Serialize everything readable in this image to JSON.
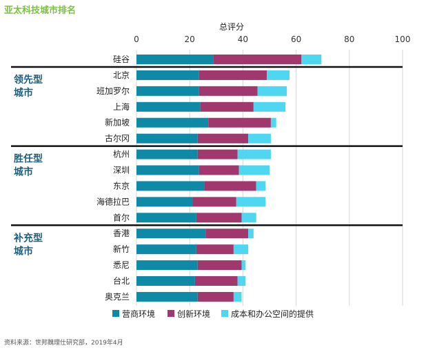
{
  "title": "亚太科技城市排名",
  "source": "资料来源：世邦魏理仕研究部，2019年4月",
  "colors": {
    "title": "#7cc242",
    "series": [
      "#0e8aa6",
      "#a1386d",
      "#4fd7f2"
    ],
    "divider": "#111111",
    "grid": "#d7d7d7",
    "group_label": "#1f5f7a"
  },
  "chart_data": {
    "type": "bar",
    "orientation": "horizontal",
    "stacked": true,
    "xlabel": "总评分",
    "xlim": [
      0,
      100
    ],
    "x_ticks": [
      0,
      20,
      40,
      60,
      80,
      100
    ],
    "grid": "vertical",
    "legend_position": "bottom",
    "categories": [
      "硅谷",
      "北京",
      "班加罗尔",
      "上海",
      "新加坡",
      "古尔冈",
      "杭州",
      "深圳",
      "东京",
      "海德拉巴",
      "首尔",
      "香港",
      "新竹",
      "悉尼",
      "台北",
      "奥克兰"
    ],
    "groups": [
      {
        "label_lines": [
          "领先型",
          "城市"
        ],
        "categories": [
          "北京",
          "班加罗尔",
          "上海",
          "新加坡",
          "古尔冈"
        ]
      },
      {
        "label_lines": [
          "胜任型",
          "城市"
        ],
        "categories": [
          "杭州",
          "深圳",
          "东京",
          "海德拉巴",
          "首尔"
        ]
      },
      {
        "label_lines": [
          "补充型",
          "城市"
        ],
        "categories": [
          "香港",
          "新竹",
          "悉尼",
          "台北",
          "奥克兰"
        ]
      }
    ],
    "series": [
      {
        "name": "营商环境",
        "values": [
          29,
          23.5,
          23.5,
          24,
          27,
          23,
          23,
          23.5,
          25.5,
          21,
          22.5,
          26,
          22.5,
          23,
          22,
          23
        ]
      },
      {
        "name": "创新环境",
        "values": [
          33,
          25.5,
          22,
          20,
          23.5,
          19,
          15,
          15,
          19.5,
          16.5,
          17,
          16,
          14,
          16.5,
          16,
          13.5
        ]
      },
      {
        "name": "成本和办公空间的提供",
        "values": [
          7.5,
          8.5,
          11,
          12,
          2,
          8.5,
          12.5,
          11.5,
          3.5,
          11,
          5.5,
          2,
          5.5,
          1.5,
          3,
          3
        ]
      }
    ]
  }
}
